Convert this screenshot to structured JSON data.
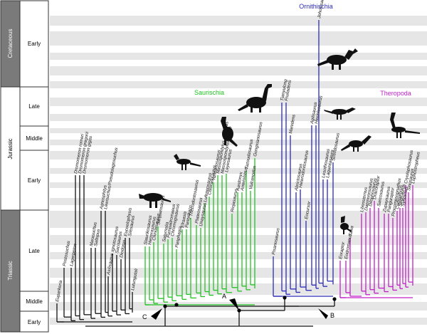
{
  "timescale": {
    "periods": [
      {
        "name": "Cretaceous",
        "band": "cretaceous"
      },
      {
        "name": "Jurassic",
        "band": "jurassic"
      },
      {
        "name": "Triassic",
        "band": "triassic"
      }
    ],
    "epochs": [
      {
        "name": "Early",
        "band": "cret-early"
      },
      {
        "name": "Late",
        "band": "jur-late"
      },
      {
        "name": "Middle",
        "band": "jur-middle"
      },
      {
        "name": "Early",
        "band": "jur-early"
      },
      {
        "name": "Late",
        "band": "tri-late"
      },
      {
        "name": "Middle",
        "band": "tri-middle"
      },
      {
        "name": "Early",
        "band": "tri-early"
      }
    ]
  },
  "clades": {
    "ornithischia": {
      "label": "Ornithischia",
      "color": "#2a2ab8"
    },
    "saurischia": {
      "label": "Saurischia",
      "color": "#22c222"
    },
    "theropoda": {
      "label": "Theropoda",
      "color": "#c020c8"
    }
  },
  "node_labels": {
    "a": "A",
    "b": "B",
    "c": "C"
  },
  "outgroup": {
    "color": "#111111",
    "taxa": [
      "Euparkeria",
      "Postosuchus",
      "Lagerpeton",
      "Dromomeron romeri",
      "Dromomeron gregorii",
      "Dromomeron gigas",
      "Marasuchus",
      "Saltopus",
      "Agnosphitys",
      "Lewisuchus/Pseudolagosuchus",
      "Asilisaurus",
      "Ignotosaurus",
      "Sacisaurus",
      "Diodorus",
      "Eucoelophysis",
      "Silesaurus",
      "Lutungutali"
    ]
  },
  "saurischia": {
    "taxa": [
      "Staurikosaurus",
      "Herrerasaurus",
      "Chindesaurus",
      "Sanjuansaurus",
      "Saturnalia",
      "Pampadromaeus",
      "Chromogisaurus",
      "Panphagia",
      "Efraasia",
      "Pantydraco",
      "Thecodontosaurus",
      "Plateosaurus",
      "Unaysaurus",
      "Lufengosaurus",
      "Coloradisaurus",
      "Yunnanosaurus",
      "Massospondylus carinatus",
      "Massospondylus kaalae",
      "Leyesaurus",
      "Riojasaurus",
      "Aardonyx",
      "Antetonitrus",
      "Tazoudasaurus",
      "Vulcanodon",
      "Gongxianosaurus"
    ]
  },
  "ornithischia": {
    "taxa": [
      "Pisanosaurus",
      "Tianyulong",
      "Fruitadens",
      "Manidens",
      "Abrictosaurus",
      "Heterodontosaurus",
      "Eocursor",
      "Agilisaurus",
      "Hexinlusaurus",
      "Jeholosaurus",
      "Lesothosaurus",
      "Laquintasaura",
      "Scelidosaurus"
    ]
  },
  "theropoda": {
    "taxa": [
      "Eoraptor",
      "Eodromaeus",
      "Tawa",
      "Liliensternus",
      "Daemonosaurus",
      "Dilophosaurus",
      "Dracoraptor",
      "Sarcosaurus",
      "Zupaysaurus",
      "Panguraptor",
      "Procompsognathus",
      "Coelophysis",
      "Segisaurus",
      "Syntarsus",
      "Cryolophosaurus",
      "Sinosaurus",
      "Lophostropheus"
    ]
  }
}
